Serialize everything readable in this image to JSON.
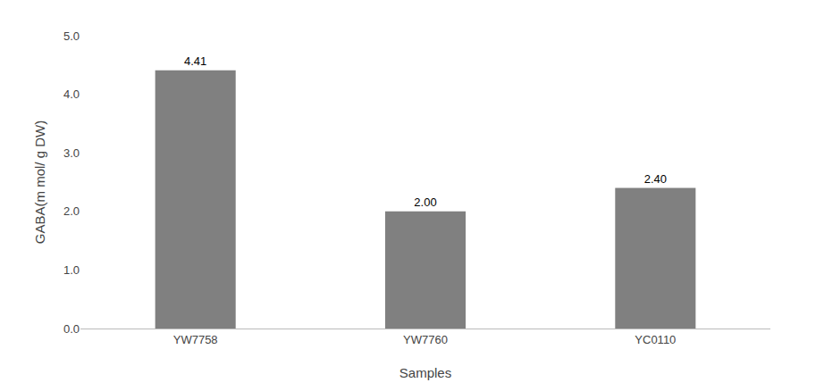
{
  "chart_data": {
    "type": "bar",
    "categories": [
      "YW7758",
      "YW7760",
      "YC0110"
    ],
    "values": [
      4.41,
      2.0,
      2.4
    ],
    "value_labels": [
      "4.41",
      "2.00",
      "2.40"
    ],
    "data_labels": true,
    "color": "#808080",
    "xlabel": "Samples",
    "ylabel": "GABA(m mol/ g DW)",
    "ylim": [
      0,
      5.0
    ],
    "yticks": [
      {
        "value": 0.0,
        "label": "0.0"
      },
      {
        "value": 1.0,
        "label": "1.0"
      },
      {
        "value": 2.0,
        "label": "2.0"
      },
      {
        "value": 3.0,
        "label": "3.0"
      },
      {
        "value": 4.0,
        "label": "4.0"
      },
      {
        "value": 5.0,
        "label": "5.0"
      }
    ],
    "grid": false
  }
}
